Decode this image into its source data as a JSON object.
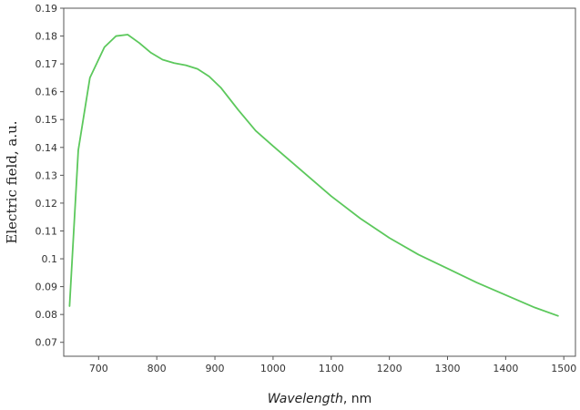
{
  "chart_data": {
    "type": "line",
    "xlabel_main": "Wavelength",
    "xlabel_unit": ", nm",
    "ylabel": "Electric field, a.u.",
    "xlim": [
      640,
      1520
    ],
    "ylim": [
      0.065,
      0.19
    ],
    "xticks": [
      700,
      800,
      900,
      1000,
      1100,
      1200,
      1300,
      1400,
      1500
    ],
    "yticks": [
      0.07,
      0.08,
      0.09,
      0.1,
      0.11,
      0.12,
      0.13,
      0.14,
      0.15,
      0.16,
      0.17,
      0.18,
      0.19
    ],
    "grid": true,
    "series": [
      {
        "color": "#5cc85c",
        "x": [
          650,
          665,
          685,
          710,
          730,
          750,
          770,
          790,
          810,
          830,
          850,
          870,
          890,
          910,
          940,
          970,
          1000,
          1050,
          1100,
          1150,
          1200,
          1250,
          1300,
          1350,
          1400,
          1450,
          1490
        ],
        "y": [
          0.083,
          0.139,
          0.165,
          0.176,
          0.18,
          0.1805,
          0.1775,
          0.174,
          0.1715,
          0.1703,
          0.1695,
          0.1682,
          0.1655,
          0.1615,
          0.1535,
          0.146,
          0.1405,
          0.1315,
          0.1225,
          0.1145,
          0.1075,
          0.1015,
          0.0965,
          0.0915,
          0.087,
          0.0825,
          0.0795
        ]
      }
    ]
  }
}
